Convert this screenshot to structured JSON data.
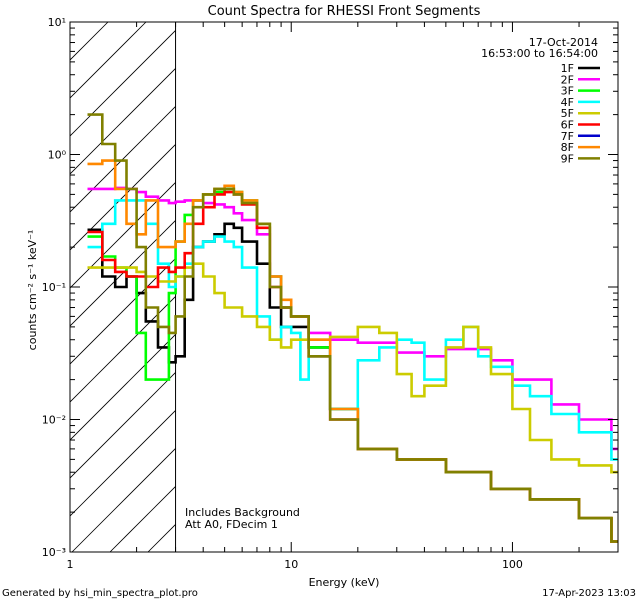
{
  "chart_data": {
    "type": "line",
    "title": "Count Spectra for RHESSI Front Segments",
    "xlabel": "Energy (keV)",
    "ylabel": "counts cm⁻² s⁻¹ keV⁻¹",
    "xscale": "log",
    "yscale": "log",
    "xlim": [
      1,
      300
    ],
    "ylim": [
      0.001,
      10
    ],
    "x_ticks": [
      {
        "value": 1,
        "label": "1"
      },
      {
        "value": 10,
        "label": "10"
      },
      {
        "value": 100,
        "label": "100"
      }
    ],
    "y_ticks": [
      {
        "value": 10,
        "label": "10¹"
      },
      {
        "value": 1,
        "label": "10⁰"
      },
      {
        "value": 0.1,
        "label": "10⁻¹"
      },
      {
        "value": 0.01,
        "label": "10⁻²"
      },
      {
        "value": 0.001,
        "label": "10⁻³"
      }
    ],
    "hatched_region": [
      1,
      3
    ],
    "date": "17-Oct-2014",
    "time_range": "16:53:00 to 16:54:00",
    "annotations": [
      "Includes Background",
      "Att A0, FDecim 1"
    ],
    "series": [
      {
        "name": "1F",
        "color": "#000000",
        "x": [
          1.2,
          1.4,
          1.6,
          1.8,
          2.0,
          2.2,
          2.5,
          2.8,
          3.0,
          3.3,
          3.6,
          4.0,
          4.5,
          5.0,
          5.5,
          6.0,
          7.0,
          8.0,
          9.0,
          10,
          12,
          15,
          20,
          30,
          50,
          80,
          120,
          200,
          280
        ],
        "y": [
          0.27,
          0.12,
          0.1,
          0.12,
          0.09,
          0.055,
          0.035,
          0.027,
          0.03,
          0.08,
          0.2,
          0.22,
          0.25,
          0.3,
          0.28,
          0.22,
          0.15,
          0.07,
          0.05,
          0.05,
          0.035,
          0.012,
          0.006,
          0.005,
          0.004,
          0.003,
          0.0025,
          0.0018,
          0.0012
        ]
      },
      {
        "name": "2F",
        "color": "#ff00ff",
        "x": [
          1.2,
          1.4,
          1.6,
          1.8,
          2.0,
          2.2,
          2.5,
          2.8,
          3.0,
          3.3,
          3.6,
          4.0,
          4.5,
          5.0,
          5.5,
          6.0,
          7.0,
          8.0,
          9.0,
          10,
          12,
          15,
          20,
          30,
          40,
          50,
          60,
          80,
          100,
          150,
          200,
          280
        ],
        "y": [
          0.55,
          0.55,
          0.56,
          0.55,
          0.52,
          0.48,
          0.45,
          0.43,
          0.44,
          0.45,
          0.45,
          0.43,
          0.42,
          0.4,
          0.36,
          0.32,
          0.25,
          0.12,
          0.07,
          0.06,
          0.045,
          0.04,
          0.038,
          0.032,
          0.03,
          0.034,
          0.034,
          0.028,
          0.02,
          0.013,
          0.01,
          0.006
        ]
      },
      {
        "name": "3F",
        "color": "#00ff00",
        "x": [
          1.2,
          1.4,
          1.6,
          1.8,
          2.0,
          2.2,
          2.5,
          2.8,
          3.0,
          3.3,
          3.6,
          4.0,
          4.5,
          5.0,
          5.5,
          6.0,
          7.0,
          8.0,
          9.0,
          10,
          12,
          15,
          20,
          30,
          50,
          80,
          120,
          200,
          280
        ],
        "y": [
          0.24,
          0.17,
          0.14,
          0.12,
          0.045,
          0.02,
          0.02,
          0.09,
          0.22,
          0.35,
          0.45,
          0.5,
          0.52,
          0.55,
          0.52,
          0.45,
          0.3,
          0.12,
          0.07,
          0.06,
          0.035,
          0.012,
          0.006,
          0.005,
          0.004,
          0.003,
          0.0025,
          0.0018,
          0.0012
        ]
      },
      {
        "name": "4F",
        "color": "#00ffff",
        "x": [
          1.2,
          1.4,
          1.6,
          1.8,
          2.0,
          2.2,
          2.5,
          2.8,
          3.0,
          3.3,
          3.6,
          4.0,
          4.5,
          5.0,
          5.5,
          6.0,
          7.0,
          8.0,
          9.0,
          10,
          11,
          12,
          15,
          20,
          25,
          30,
          35,
          40,
          50,
          60,
          70,
          80,
          100,
          120,
          150,
          200,
          280
        ],
        "y": [
          0.2,
          0.3,
          0.45,
          0.45,
          0.45,
          0.3,
          0.15,
          0.1,
          0.12,
          0.15,
          0.2,
          0.22,
          0.24,
          0.22,
          0.2,
          0.14,
          0.06,
          0.04,
          0.05,
          0.045,
          0.02,
          0.03,
          0.012,
          0.028,
          0.035,
          0.04,
          0.038,
          0.02,
          0.04,
          0.05,
          0.03,
          0.025,
          0.018,
          0.015,
          0.011,
          0.008,
          0.005
        ]
      },
      {
        "name": "5F",
        "color": "#cccc00",
        "x": [
          1.2,
          1.4,
          1.6,
          1.8,
          2.0,
          2.2,
          2.5,
          2.8,
          3.0,
          3.3,
          3.6,
          4.0,
          4.5,
          5.0,
          6.0,
          7.0,
          8.0,
          9.0,
          10,
          12,
          15,
          20,
          25,
          30,
          35,
          40,
          50,
          60,
          70,
          80,
          100,
          120,
          150,
          200,
          280
        ],
        "y": [
          0.14,
          0.14,
          0.14,
          0.14,
          0.13,
          0.12,
          0.11,
          0.11,
          0.12,
          0.14,
          0.15,
          0.12,
          0.09,
          0.07,
          0.06,
          0.05,
          0.04,
          0.035,
          0.04,
          0.04,
          0.042,
          0.05,
          0.045,
          0.022,
          0.015,
          0.018,
          0.035,
          0.05,
          0.035,
          0.022,
          0.012,
          0.007,
          0.005,
          0.0045,
          0.004
        ]
      },
      {
        "name": "6F",
        "color": "#ff0000",
        "x": [
          1.2,
          1.4,
          1.6,
          1.8,
          2.0,
          2.2,
          2.5,
          2.8,
          3.0,
          3.3,
          3.6,
          4.0,
          4.5,
          5.0,
          5.5,
          6.0,
          7.0,
          8.0,
          9.0,
          10,
          12,
          15,
          20,
          30,
          50,
          80,
          120,
          200,
          280
        ],
        "y": [
          0.26,
          0.16,
          0.13,
          0.12,
          0.12,
          0.1,
          0.14,
          0.13,
          0.14,
          0.18,
          0.3,
          0.4,
          0.5,
          0.52,
          0.5,
          0.42,
          0.28,
          0.1,
          0.07,
          0.06,
          0.03,
          0.01,
          0.006,
          0.005,
          0.004,
          0.003,
          0.0025,
          0.0018,
          0.0012
        ]
      },
      {
        "name": "7F",
        "color": "#0000cc",
        "x": [],
        "y": []
      },
      {
        "name": "8F",
        "color": "#ff8800",
        "x": [
          1.2,
          1.4,
          1.6,
          1.8,
          2.0,
          2.2,
          2.5,
          2.8,
          3.0,
          3.3,
          3.6,
          4.0,
          4.5,
          5.0,
          5.5,
          6.0,
          7.0,
          8.0,
          9.0,
          10,
          12,
          15,
          20,
          30,
          50,
          80,
          120,
          200,
          280
        ],
        "y": [
          0.85,
          0.9,
          0.55,
          0.3,
          0.25,
          0.45,
          0.2,
          0.2,
          0.22,
          0.3,
          0.45,
          0.5,
          0.55,
          0.58,
          0.52,
          0.45,
          0.3,
          0.12,
          0.08,
          0.06,
          0.04,
          0.012,
          0.006,
          0.005,
          0.004,
          0.003,
          0.0025,
          0.0018,
          0.0012
        ]
      },
      {
        "name": "9F",
        "color": "#808000",
        "x": [
          1.2,
          1.4,
          1.6,
          1.8,
          2.0,
          2.2,
          2.5,
          2.8,
          3.0,
          3.3,
          3.6,
          4.0,
          4.5,
          5.0,
          5.5,
          6.0,
          7.0,
          8.0,
          9.0,
          10,
          12,
          15,
          20,
          30,
          50,
          80,
          120,
          200,
          280
        ],
        "y": [
          2.0,
          1.2,
          0.9,
          0.55,
          0.2,
          0.07,
          0.05,
          0.045,
          0.06,
          0.12,
          0.4,
          0.5,
          0.55,
          0.55,
          0.5,
          0.43,
          0.3,
          0.1,
          0.07,
          0.06,
          0.03,
          0.01,
          0.006,
          0.005,
          0.004,
          0.003,
          0.0025,
          0.0018,
          0.0012
        ]
      }
    ]
  },
  "footer": {
    "generated_by": "Generated by hsi_min_spectra_plot.pro",
    "timestamp": "17-Apr-2023 13:03"
  }
}
